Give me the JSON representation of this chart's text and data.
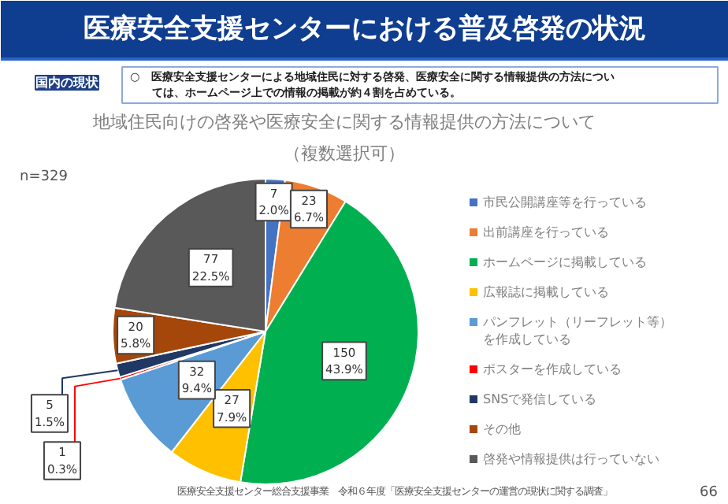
{
  "chart_data": {
    "type": "pie",
    "title": "医療安全支援センターにおける普及啓発の状況",
    "subtitle": "地域住民向けの啓発や医療安全に関する情報提供の方法について（複数選択可）",
    "categories": [
      "市民公開講座等を行っている",
      "出前講座を行っている",
      "ホームページに掲載している",
      "広報誌に掲載している",
      "パンフレット（リーフレット等）を作成している",
      "ポスターを作成している",
      "SNSで発信している",
      "その他",
      "啓発や情報提供は行っていない"
    ],
    "values": [
      7,
      23,
      150,
      27,
      32,
      1,
      5,
      20,
      77
    ],
    "colors": [
      "#4472c4",
      "#ed7d31",
      "#00b050",
      "#ffc000",
      "#5b9bd5",
      "#ff0000",
      "#203864",
      "#a5470a",
      "#595959"
    ],
    "value_labels": [
      "7\n2.0%",
      "23\n6.7%",
      "150\n43.9%",
      "27\n7.9%",
      "32\n9.4%",
      "1\n0.3%",
      "5\n1.5%",
      "20\n5.8%",
      "77\n22.5%"
    ],
    "legend": "right",
    "annotations": [
      "国内の現状",
      "○　医療安全支援センターによる地域住民に対する啓発、医療安全に関する情報提供の方法については、ホームページ上での情報の掲載が約４割を占めている。",
      "n=329",
      "医療安全支援センター総合支援事業　令和６年度「医療安全支援センターの運営の現状に関する調査」",
      "66"
    ]
  }
}
